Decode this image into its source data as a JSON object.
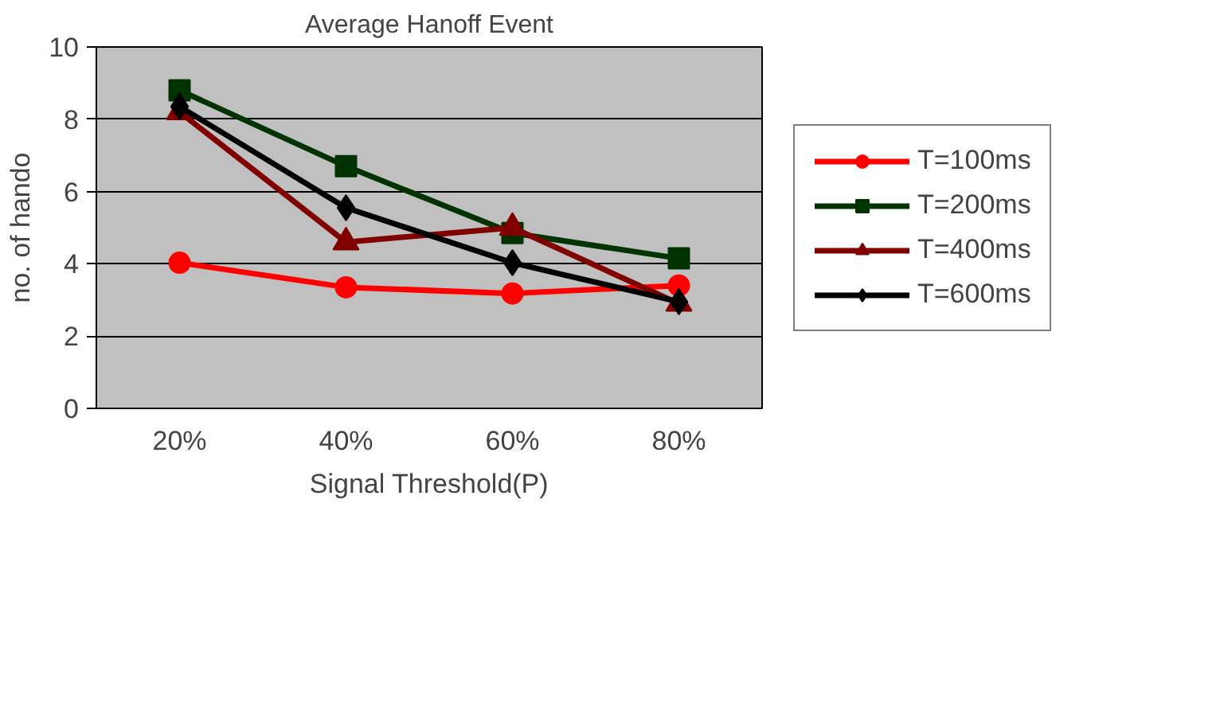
{
  "chart_data": {
    "type": "line",
    "title": "Average Hanoff Event",
    "xlabel": "Signal Threshold(P)",
    "ylabel": "no. of hando",
    "categories": [
      "20%",
      "40%",
      "60%",
      "80%"
    ],
    "series": [
      {
        "name": "T=100ms",
        "color": "#ff0000",
        "marker": "circle",
        "values": [
          4.03,
          3.35,
          3.18,
          3.4
        ]
      },
      {
        "name": "T=200ms",
        "color": "#003300",
        "marker": "square",
        "values": [
          8.8,
          6.7,
          4.85,
          4.15
        ]
      },
      {
        "name": "T=400ms",
        "color": "#800000",
        "marker": "triangle",
        "values": [
          8.2,
          4.6,
          5.0,
          2.9
        ]
      },
      {
        "name": "T=600ms",
        "color": "#000000",
        "marker": "diamond",
        "values": [
          8.35,
          5.55,
          4.03,
          2.95
        ]
      }
    ],
    "ylim": [
      0,
      10
    ],
    "yticks": [
      0,
      2,
      4,
      6,
      8,
      10
    ],
    "grid": "y",
    "legend": "right",
    "line_style": "solid"
  }
}
